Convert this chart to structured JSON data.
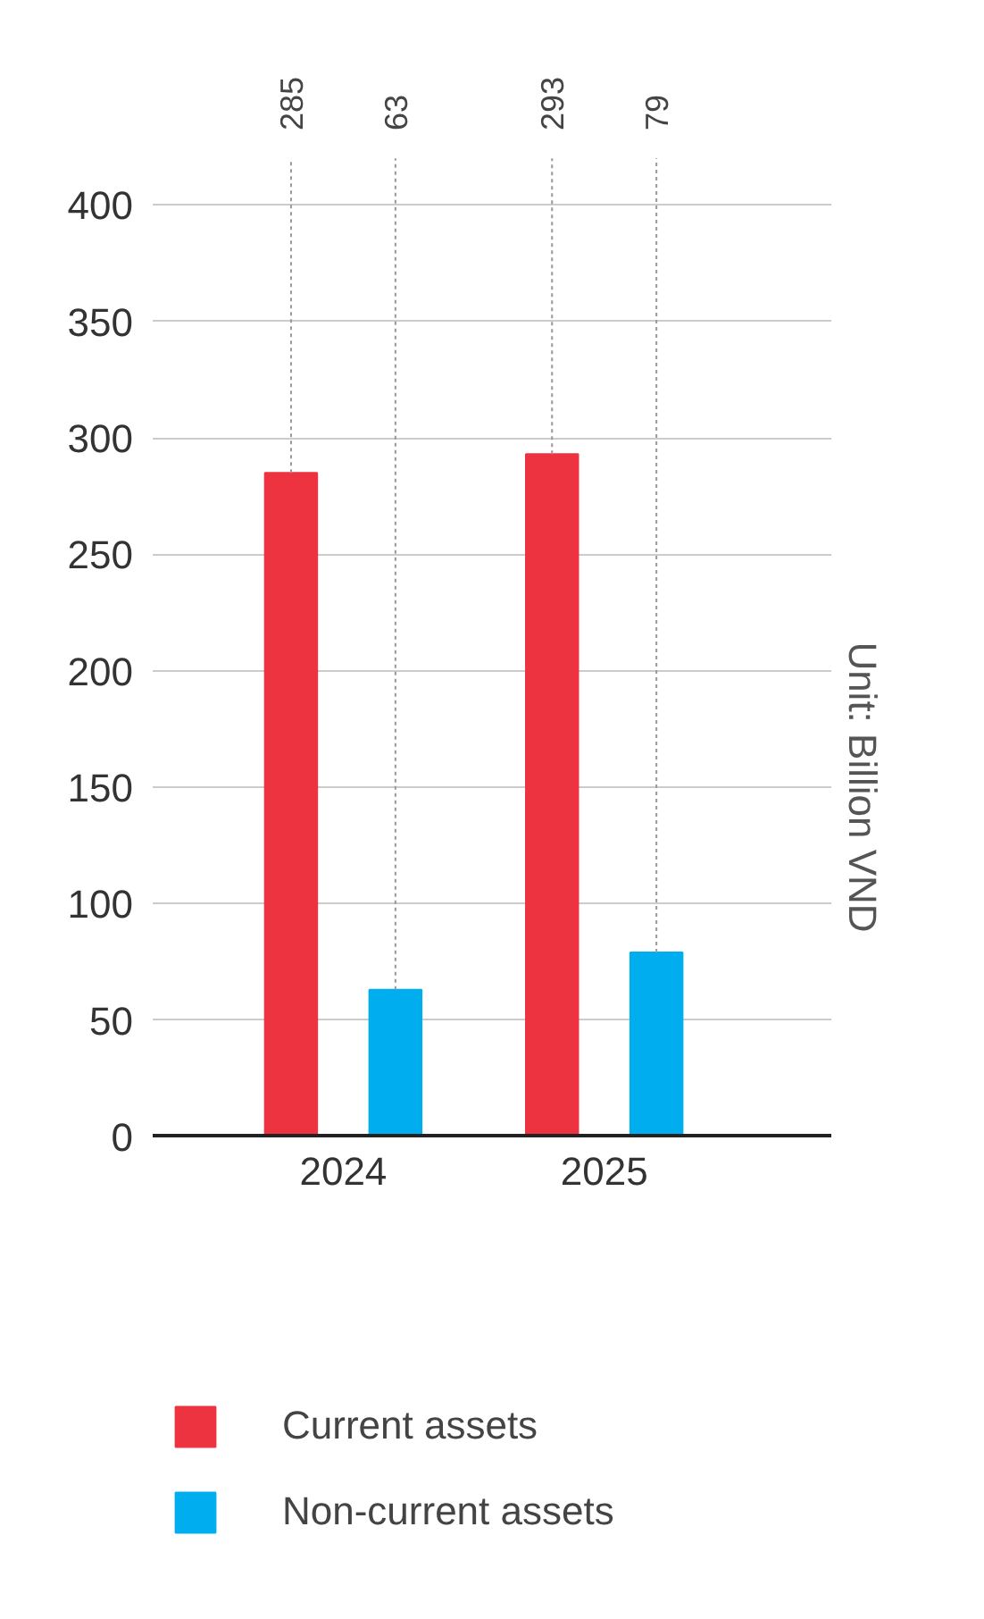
{
  "chart_data": {
    "type": "bar",
    "categories": [
      "2024",
      "2025"
    ],
    "series": [
      {
        "name": "Current assets",
        "color": "#ee3340",
        "values": [
          285,
          293
        ],
        "value_labels": [
          "285",
          "293"
        ]
      },
      {
        "name": "Non-current assets",
        "color": "#00aeef",
        "values": [
          63,
          79
        ],
        "value_labels": [
          "63",
          "79"
        ]
      }
    ],
    "ylim": [
      0,
      400
    ],
    "yticks": [
      0,
      50,
      100,
      150,
      200,
      250,
      300,
      350,
      400
    ],
    "y2label": "Unit: Billion VND",
    "grid": "y",
    "legend": "bottom"
  }
}
